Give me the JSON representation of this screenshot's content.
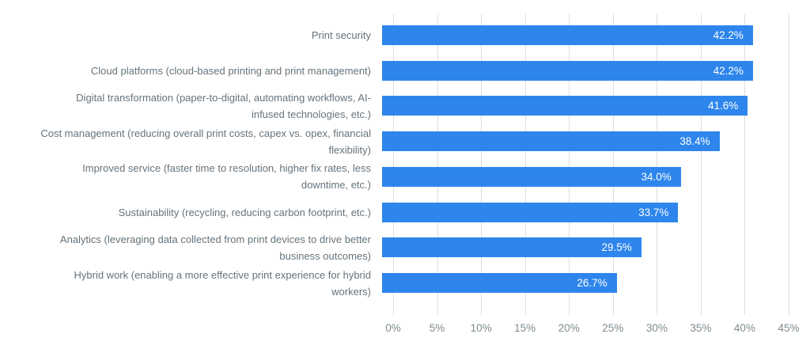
{
  "chart_data": {
    "type": "bar",
    "orientation": "horizontal",
    "title": "",
    "xlabel": "",
    "ylabel": "",
    "legend": "none",
    "grid": "vertical",
    "xlim": [
      0,
      45
    ],
    "categories": [
      "Print security",
      "Cloud platforms (cloud-based printing and print management)",
      "Digital transformation (paper-to-digital, automating workflows, AI-\ninfused technologies, etc.)",
      "Cost management (reducing overall print costs, capex vs. opex, financial\nflexibility)",
      "Improved service (faster time to resolution, higher fix rates, less\ndowntime, etc.)",
      "Sustainability (recycling, reducing carbon footprint, etc.)",
      "Analytics (leveraging data collected from print devices to drive better\nbusiness outcomes)",
      "Hybrid work (enabling a more effective print experience for hybrid\nworkers)"
    ],
    "values": [
      42.2,
      42.2,
      41.6,
      38.4,
      34.0,
      33.7,
      29.5,
      26.7
    ],
    "value_labels": [
      "42.2%",
      "42.2%",
      "41.6%",
      "38.4%",
      "34.0%",
      "33.7%",
      "29.5%",
      "26.7%"
    ],
    "tick_values": [
      0,
      5,
      10,
      15,
      20,
      25,
      30,
      35,
      40,
      45
    ],
    "tick_labels": [
      "0%",
      "5%",
      "10%",
      "15%",
      "20%",
      "25%",
      "30%",
      "35%",
      "40%",
      "45%"
    ],
    "colors": {
      "bar": "#2e86ec",
      "value_label": "#ffffff",
      "category_label": "#66737c",
      "tick_label": "#7e8b91",
      "gridline": "#dadde0",
      "background": "#ffffff"
    }
  }
}
